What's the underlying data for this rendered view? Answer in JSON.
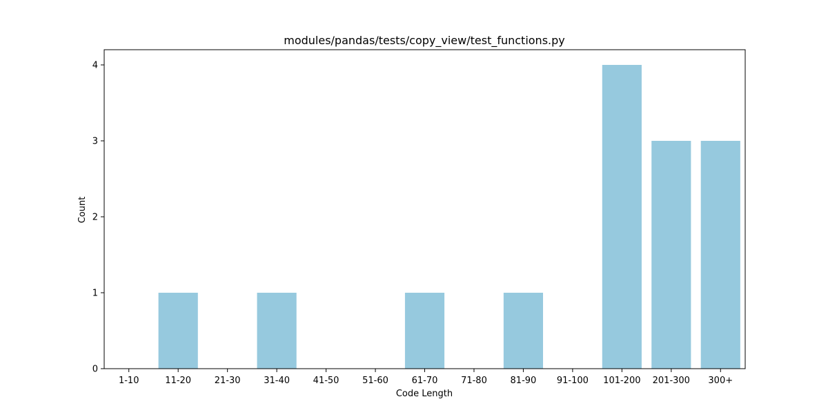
{
  "chart_data": {
    "type": "bar",
    "title": "modules/pandas/tests/copy_view/test_functions.py",
    "xlabel": "Code Length",
    "ylabel": "Count",
    "categories": [
      "1-10",
      "11-20",
      "21-30",
      "31-40",
      "41-50",
      "51-60",
      "61-70",
      "71-80",
      "81-90",
      "91-100",
      "101-200",
      "201-300",
      "300+"
    ],
    "values": [
      0,
      1,
      0,
      1,
      0,
      0,
      1,
      0,
      1,
      0,
      4,
      3,
      3
    ],
    "ylim": [
      0,
      4.2
    ],
    "yticks": [
      0,
      1,
      2,
      3,
      4
    ],
    "grid": false,
    "bar_color": "#96c9de"
  }
}
